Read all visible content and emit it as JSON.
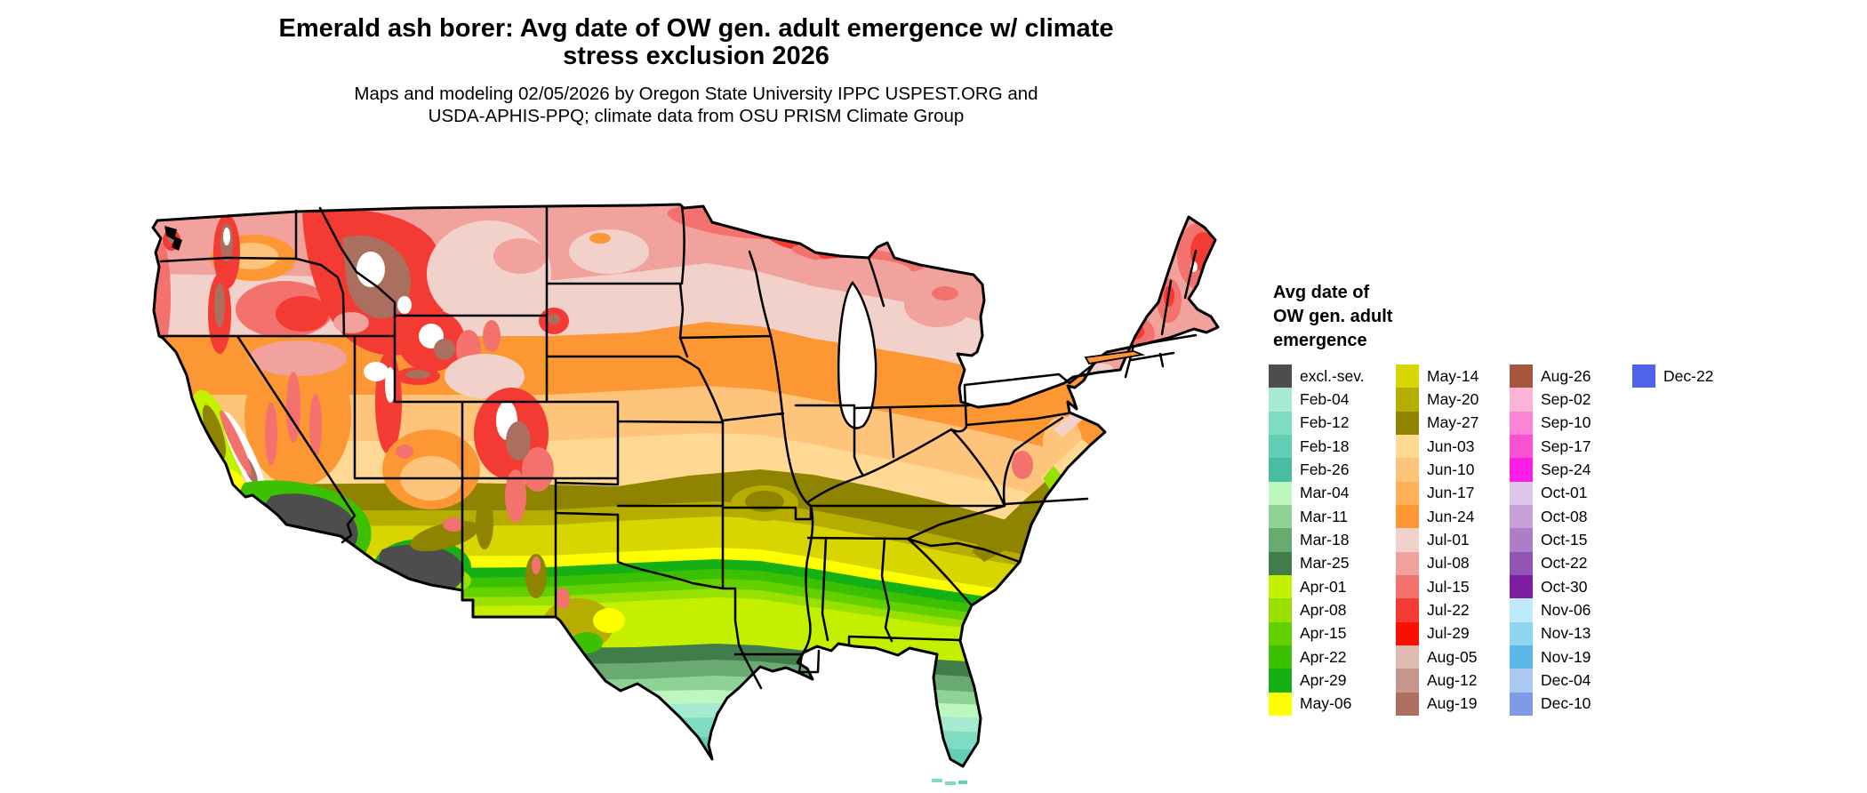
{
  "title": {
    "line1": "Emerald ash borer: Avg date of OW gen. adult emergence w/ climate",
    "line2": "stress exclusion 2026"
  },
  "subtitle": {
    "line1": "Maps and modeling 02/05/2026 by Oregon State University IPPC USPEST.ORG and",
    "line2": "USDA-APHIS-PPQ; climate data from OSU PRISM Climate Group"
  },
  "legend": {
    "title_lines": [
      "Avg date of",
      "OW gen. adult",
      "emergence"
    ],
    "columns": [
      [
        {
          "label": "excl.-sev.",
          "color": "#4d4d4d"
        },
        {
          "label": "Feb-04",
          "color": "#a5ead1"
        },
        {
          "label": "Feb-12",
          "color": "#7fdcc3"
        },
        {
          "label": "Feb-18",
          "color": "#63cdb5"
        },
        {
          "label": "Feb-26",
          "color": "#49bca6"
        },
        {
          "label": "Mar-04",
          "color": "#bdf7c0"
        },
        {
          "label": "Mar-11",
          "color": "#8ed296"
        },
        {
          "label": "Mar-18",
          "color": "#68aa70"
        },
        {
          "label": "Mar-25",
          "color": "#417c4b"
        },
        {
          "label": "Apr-01",
          "color": "#c4f000"
        },
        {
          "label": "Apr-08",
          "color": "#98e000"
        },
        {
          "label": "Apr-15",
          "color": "#63d100"
        },
        {
          "label": "Apr-22",
          "color": "#3bc002"
        },
        {
          "label": "Apr-29",
          "color": "#14b014"
        },
        {
          "label": "May-06",
          "color": "#ffff00"
        }
      ],
      [
        {
          "label": "May-14",
          "color": "#d8d500"
        },
        {
          "label": "May-20",
          "color": "#b7ac00"
        },
        {
          "label": "May-27",
          "color": "#8e8400"
        },
        {
          "label": "Jun-03",
          "color": "#ffd994"
        },
        {
          "label": "Jun-10",
          "color": "#ffc47b"
        },
        {
          "label": "Jun-17",
          "color": "#ffae59"
        },
        {
          "label": "Jun-24",
          "color": "#fc9733"
        },
        {
          "label": "Jul-01",
          "color": "#f2d1cb"
        },
        {
          "label": "Jul-08",
          "color": "#f2a29c"
        },
        {
          "label": "Jul-15",
          "color": "#f4726d"
        },
        {
          "label": "Jul-22",
          "color": "#f43b33"
        },
        {
          "label": "Jul-29",
          "color": "#fb0f00"
        },
        {
          "label": "Aug-05",
          "color": "#dfbbb1"
        },
        {
          "label": "Aug-12",
          "color": "#c5968b"
        },
        {
          "label": "Aug-19",
          "color": "#ad705e"
        }
      ],
      [
        {
          "label": "Aug-26",
          "color": "#a5573e"
        },
        {
          "label": "Sep-02",
          "color": "#fcb4d7"
        },
        {
          "label": "Sep-10",
          "color": "#fb85d4"
        },
        {
          "label": "Sep-17",
          "color": "#f852d3"
        },
        {
          "label": "Sep-24",
          "color": "#fb1fe5"
        },
        {
          "label": "Oct-01",
          "color": "#dcc7e8"
        },
        {
          "label": "Oct-08",
          "color": "#c6a1d8"
        },
        {
          "label": "Oct-15",
          "color": "#ad7ec7"
        },
        {
          "label": "Oct-22",
          "color": "#9353b3"
        },
        {
          "label": "Oct-30",
          "color": "#7d1fa0"
        },
        {
          "label": "Nov-06",
          "color": "#bfeafa"
        },
        {
          "label": "Nov-13",
          "color": "#90d5f0"
        },
        {
          "label": "Nov-19",
          "color": "#5cb8e6"
        },
        {
          "label": "Dec-04",
          "color": "#aac9f0"
        },
        {
          "label": "Dec-10",
          "color": "#7e9ce5"
        }
      ],
      [
        {
          "label": "Dec-22",
          "color": "#4f63e8"
        }
      ]
    ]
  }
}
